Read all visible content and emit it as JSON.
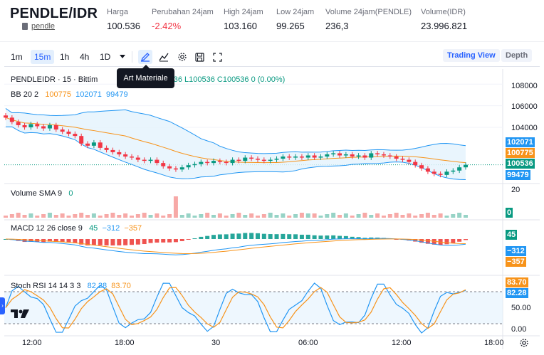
{
  "header": {
    "pair": "PENDLE/IDR",
    "sub_link": "pendle",
    "stats": [
      {
        "label": "Harga",
        "value": "100.536",
        "tone": "normal"
      },
      {
        "label": "Perubahan 24jam",
        "value": "-2.42%",
        "tone": "neg"
      },
      {
        "label": "High 24jam",
        "value": "103.160",
        "tone": "normal"
      },
      {
        "label": "Low 24jam",
        "value": "99.265",
        "tone": "normal"
      },
      {
        "label": "Volume 24jam(PENDLE)",
        "value": "236,3",
        "tone": "normal"
      },
      {
        "label": "Volume(IDR)",
        "value": "23.996.821",
        "tone": "normal"
      }
    ]
  },
  "toolbar": {
    "timeframes": [
      "1m",
      "15m",
      "1h",
      "4h",
      "1D"
    ],
    "active_timeframe": "15m",
    "tooltip": "Art Materiale",
    "trading_view": "Trading View",
    "depth": "Depth"
  },
  "legend": {
    "main_prefix": "PENDLEIDR · 15 · Bittim",
    "main_ohlc": "100536  L100536  C100536  0 (0.00%)",
    "bb_label": "BB 20 2",
    "bb_mid": "100775",
    "bb_upper": "102071",
    "bb_lower": "99479",
    "vol_label": "Volume SMA 9",
    "vol_value": "0",
    "macd_label": "MACD 12 26 close 9",
    "macd_hist": "45",
    "macd_line": "−312",
    "macd_signal": "−357",
    "stoch_label": "Stoch RSI 14 14 3 3",
    "stoch_k": "82.28",
    "stoch_d": "83.70"
  },
  "price_axis": {
    "ticks": [
      "108000",
      "106000",
      "104000"
    ],
    "tags": [
      {
        "value": "102071",
        "color": "#2196f3"
      },
      {
        "value": "100775",
        "color": "#f7931a"
      },
      {
        "value": "100536",
        "color": "#089981"
      },
      {
        "value": "99479",
        "color": "#2196f3"
      }
    ]
  },
  "volume_axis": {
    "tick": "20",
    "tag": "0"
  },
  "macd_axis": {
    "tags": [
      {
        "value": "45",
        "color": "#089981"
      },
      {
        "value": "−312",
        "color": "#2196f3"
      },
      {
        "value": "−357",
        "color": "#f7931a"
      }
    ]
  },
  "stoch_axis": {
    "ticks": [
      "50.00",
      "0.00"
    ],
    "tags": [
      {
        "value": "83.70",
        "color": "#f7931a"
      },
      {
        "value": "82.28",
        "color": "#2196f3"
      }
    ]
  },
  "time_axis": [
    "12:00",
    "18:00",
    "30",
    "06:00",
    "12:00",
    "18:00"
  ],
  "colors": {
    "up": "#089981",
    "down": "#f23645",
    "bb": "#2196f3",
    "bbfill": "#e3f2fd",
    "basis": "#f7931a"
  },
  "chart_data": {
    "type": "line",
    "title": "PENDLEIDR · 15",
    "xlabel": "",
    "ylabel": "",
    "ylim": [
      98800,
      109200
    ],
    "close": [
      104900,
      104500,
      104200,
      104000,
      104300,
      104100,
      103900,
      104200,
      103800,
      103600,
      103400,
      103200,
      102500,
      102300,
      102600,
      102100,
      101900,
      101700,
      101500,
      101300,
      101200,
      101000,
      100900,
      101000,
      100700,
      100400,
      100200,
      100100,
      100300,
      100500,
      100600,
      100800,
      100700,
      100900,
      100800,
      100700,
      101000,
      100900,
      101200,
      101100,
      101000,
      100900,
      101000,
      101100,
      101300,
      101200,
      101300,
      101200,
      101400,
      101200,
      101300,
      101500,
      101600,
      101400,
      101500,
      101300,
      101400,
      101200,
      101600,
      101500,
      101400,
      101300,
      101100,
      101000,
      100800,
      100500,
      100200,
      99900,
      99700,
      99600,
      99900,
      100000,
      100300,
      100536
    ]
  }
}
